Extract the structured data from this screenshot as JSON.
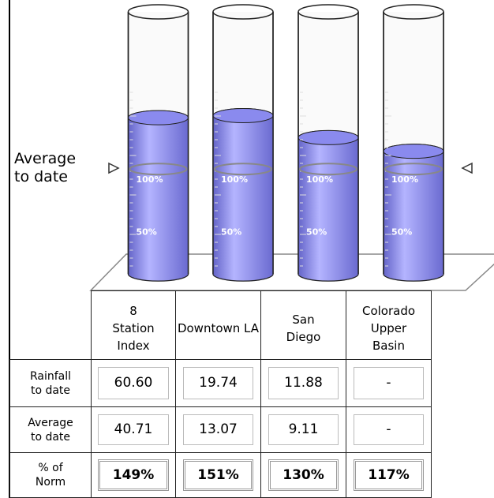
{
  "chart_data": {
    "type": "cylinder",
    "annotation": "Average\nto date",
    "categories": [
      "8\nStation\nIndex",
      "Downtown LA",
      "San\nDiego",
      "Colorado\nUpper\nBasin"
    ],
    "values": [
      149,
      151,
      130,
      117
    ],
    "value_labels": [
      "149%",
      "151%",
      "130%",
      "117%"
    ],
    "value_row_label": "% of\nNorm",
    "color": "#8a8aee",
    "ylim": [
      0,
      250
    ],
    "yticks": [
      {
        "value": 50,
        "label": "50%"
      },
      {
        "value": 100,
        "label": "100%"
      }
    ],
    "rows": [
      {
        "label": "Rainfall\nto date",
        "cells": [
          "60.60",
          "19.74",
          "11.88",
          "-"
        ]
      },
      {
        "label": "Average\nto date",
        "cells": [
          "40.71",
          "13.07",
          "9.11",
          "-"
        ]
      }
    ]
  }
}
